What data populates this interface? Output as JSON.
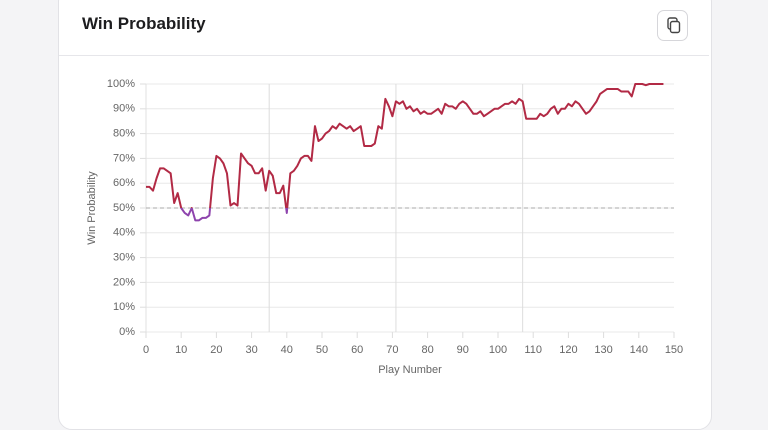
{
  "header": {
    "title": "Win Probability"
  },
  "chart_data": {
    "type": "line",
    "ylabel": "Win Probability",
    "xlabel": "Play Number",
    "xlim": [
      0,
      150
    ],
    "xticks": [
      0,
      10,
      20,
      30,
      40,
      50,
      60,
      70,
      80,
      90,
      100,
      110,
      120,
      130,
      140,
      150
    ],
    "ylim": [
      0,
      100
    ],
    "yticks": [
      {
        "value": 0,
        "label": "0%"
      },
      {
        "value": 10,
        "label": "10%"
      },
      {
        "value": 20,
        "label": "20%"
      },
      {
        "value": 30,
        "label": "30%"
      },
      {
        "value": 40,
        "label": "40%"
      },
      {
        "value": 50,
        "label": "50%"
      },
      {
        "value": 60,
        "label": "60%"
      },
      {
        "value": 70,
        "label": "70%"
      },
      {
        "value": 80,
        "label": "80%"
      },
      {
        "value": 90,
        "label": "90%"
      },
      {
        "value": 100,
        "label": "100%"
      }
    ],
    "grid": true,
    "reference_line": 50,
    "period_lines": [
      35,
      71,
      107
    ],
    "color": "#b22a45",
    "below_color": "#8e44ad",
    "x": [
      0,
      1,
      2,
      3,
      4,
      5,
      6,
      7,
      8,
      9,
      10,
      11,
      12,
      13,
      14,
      15,
      16,
      17,
      18,
      19,
      20,
      21,
      22,
      23,
      24,
      25,
      26,
      27,
      28,
      29,
      30,
      31,
      32,
      33,
      34,
      35,
      36,
      37,
      38,
      39,
      40,
      41,
      42,
      43,
      44,
      45,
      46,
      47,
      48,
      49,
      50,
      51,
      52,
      53,
      54,
      55,
      56,
      57,
      58,
      59,
      60,
      61,
      62,
      63,
      64,
      65,
      66,
      67,
      68,
      69,
      70,
      71,
      72,
      73,
      74,
      75,
      76,
      77,
      78,
      79,
      80,
      81,
      82,
      83,
      84,
      85,
      86,
      87,
      88,
      89,
      90,
      91,
      92,
      93,
      94,
      95,
      96,
      97,
      98,
      99,
      100,
      101,
      102,
      103,
      104,
      105,
      106,
      107,
      108,
      109,
      110,
      111,
      112,
      113,
      114,
      115,
      116,
      117,
      118,
      119,
      120,
      121,
      122,
      123,
      124,
      125,
      126,
      127,
      128,
      129,
      130,
      131,
      132,
      133,
      134,
      135,
      136,
      137,
      138,
      139,
      140,
      141,
      142,
      143,
      144,
      145,
      146,
      147
    ],
    "values": [
      58.5,
      58.5,
      57,
      62,
      66,
      66,
      65,
      64,
      52,
      56,
      50,
      48,
      47,
      50,
      45,
      45,
      46,
      46,
      47,
      62,
      71,
      70,
      68,
      64,
      51,
      52,
      51,
      72,
      70,
      68,
      67,
      64,
      64,
      66,
      57,
      65,
      63,
      56,
      56,
      59,
      48,
      64,
      65,
      67,
      70,
      71,
      71,
      69,
      83,
      77,
      78,
      80,
      81,
      83,
      82,
      84,
      83,
      82,
      83,
      81,
      82,
      83,
      75,
      75,
      75,
      76,
      83,
      82,
      94,
      91,
      87,
      93,
      92,
      93,
      90,
      91,
      89,
      90,
      88,
      89,
      88,
      88,
      89,
      90,
      88,
      92,
      91,
      91,
      90,
      92,
      93,
      92,
      90,
      88,
      88,
      89,
      87,
      88,
      89,
      90,
      90,
      91,
      92,
      92,
      93,
      92,
      94,
      93,
      86,
      86,
      86,
      86,
      88,
      87,
      88,
      90,
      91,
      88,
      90,
      90,
      92,
      91,
      93,
      92,
      90,
      88,
      89,
      91,
      93,
      96,
      97,
      98,
      98,
      98,
      98,
      97,
      97,
      97,
      95,
      100,
      100,
      100,
      99.5,
      100,
      100,
      100,
      100,
      100
    ]
  }
}
